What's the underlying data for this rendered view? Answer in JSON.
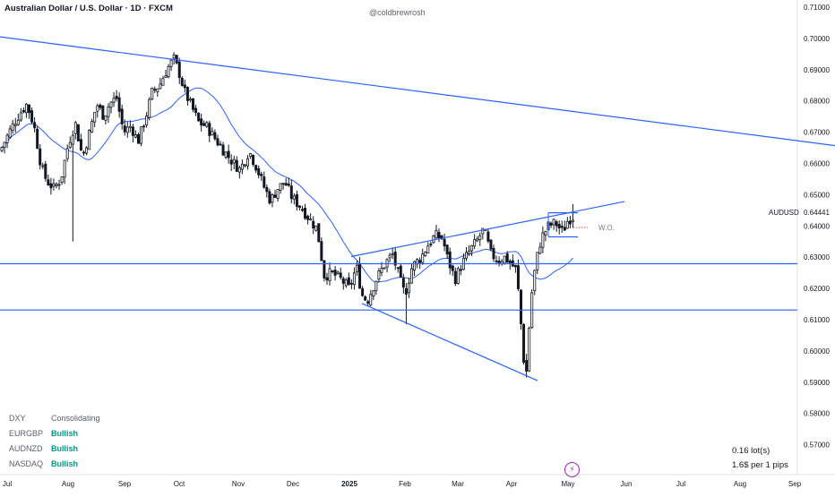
{
  "header": {
    "title": "Australian Dollar / U.S. Dollar · 1D · FXCM",
    "author": "@coldbrewrosh"
  },
  "chart_data": {
    "type": "candlestick",
    "symbol": "AUDUSD",
    "last_price": "0.64441",
    "y_ticks": [
      "0.71000",
      "0.70000",
      "0.69000",
      "0.68000",
      "0.67000",
      "0.66000",
      "0.65000",
      "0.64000",
      "0.63000",
      "0.62000",
      "0.61000",
      "0.60000",
      "0.59000",
      "0.58000",
      "0.57000"
    ],
    "ylim": [
      0.5665,
      0.7145
    ],
    "x_ticks": [
      "Jul",
      "Aug",
      "Sep",
      "Oct",
      "Nov",
      "Dec",
      "2025",
      "Feb",
      "Mar",
      "Apr",
      "May",
      "Jun",
      "Jul",
      "Aug",
      "Sep"
    ],
    "annotation": "W.O.",
    "color_up": "#131722",
    "color_down": "#131722",
    "ma_color": "#2962ff",
    "trendline_color": "#2962ff",
    "anchors": [
      [
        0,
        0.664
      ],
      [
        12,
        0.671
      ],
      [
        22,
        0.676
      ],
      [
        30,
        0.679
      ],
      [
        38,
        0.672
      ],
      [
        46,
        0.659
      ],
      [
        52,
        0.6545
      ],
      [
        60,
        0.652
      ],
      [
        68,
        0.655
      ],
      [
        76,
        0.666
      ],
      [
        84,
        0.673
      ],
      [
        92,
        0.662
      ],
      [
        100,
        0.67
      ],
      [
        108,
        0.679
      ],
      [
        116,
        0.675
      ],
      [
        122,
        0.679
      ],
      [
        130,
        0.681
      ],
      [
        138,
        0.67
      ],
      [
        146,
        0.672
      ],
      [
        154,
        0.667
      ],
      [
        162,
        0.674
      ],
      [
        170,
        0.683
      ],
      [
        178,
        0.685
      ],
      [
        186,
        0.69
      ],
      [
        194,
        0.6935
      ],
      [
        200,
        0.689
      ],
      [
        206,
        0.683
      ],
      [
        214,
        0.678
      ],
      [
        222,
        0.673
      ],
      [
        230,
        0.672
      ],
      [
        240,
        0.668
      ],
      [
        250,
        0.664
      ],
      [
        258,
        0.661
      ],
      [
        268,
        0.658
      ],
      [
        278,
        0.664
      ],
      [
        286,
        0.659
      ],
      [
        294,
        0.653
      ],
      [
        302,
        0.648
      ],
      [
        310,
        0.652
      ],
      [
        318,
        0.654
      ],
      [
        326,
        0.649
      ],
      [
        336,
        0.646
      ],
      [
        346,
        0.642
      ],
      [
        354,
        0.639
      ],
      [
        362,
        0.624
      ],
      [
        370,
        0.625
      ],
      [
        380,
        0.623
      ],
      [
        390,
        0.62
      ],
      [
        398,
        0.627
      ],
      [
        404,
        0.618
      ],
      [
        410,
        0.616
      ],
      [
        420,
        0.623
      ],
      [
        430,
        0.628
      ],
      [
        438,
        0.631
      ],
      [
        446,
        0.623
      ],
      [
        452,
        0.618
      ],
      [
        460,
        0.627
      ],
      [
        470,
        0.63
      ],
      [
        478,
        0.634
      ],
      [
        486,
        0.637
      ],
      [
        494,
        0.636
      ],
      [
        500,
        0.629
      ],
      [
        508,
        0.623
      ],
      [
        516,
        0.628
      ],
      [
        524,
        0.632
      ],
      [
        532,
        0.635
      ],
      [
        540,
        0.639
      ],
      [
        548,
        0.631
      ],
      [
        556,
        0.629
      ],
      [
        564,
        0.63
      ],
      [
        570,
        0.628
      ],
      [
        576,
        0.626
      ],
      [
        580,
        0.615
      ],
      [
        584,
        0.598
      ],
      [
        588,
        0.593
      ],
      [
        592,
        0.615
      ],
      [
        598,
        0.628
      ],
      [
        604,
        0.636
      ],
      [
        612,
        0.64
      ],
      [
        620,
        0.641
      ],
      [
        628,
        0.638
      ],
      [
        634,
        0.642
      ],
      [
        640,
        0.643
      ]
    ],
    "lines": [
      {
        "name": "upper-trendline",
        "x1": 0,
        "y1": 0.7005,
        "x2": 932,
        "y2": 0.6657
      },
      {
        "name": "wedge-upper",
        "x1": 392,
        "y1": 0.6302,
        "x2": 697,
        "y2": 0.6478
      },
      {
        "name": "wedge-lower",
        "x1": 404,
        "y1": 0.6152,
        "x2": 600,
        "y2": 0.5905
      },
      {
        "name": "support-high",
        "x1": 0,
        "y1": 0.6279,
        "x2": 890,
        "y2": 0.6279
      },
      {
        "name": "support-low",
        "x1": 0,
        "y1": 0.6131,
        "x2": 890,
        "y2": 0.6131
      },
      {
        "name": "range-top",
        "x1": 612,
        "y1": 0.6442,
        "x2": 645,
        "y2": 0.6442
      },
      {
        "name": "range-bottom",
        "x1": 612,
        "y1": 0.6365,
        "x2": 645,
        "y2": 0.6365
      }
    ]
  },
  "watchlist": [
    {
      "symbol": "DXY",
      "status": "Consolidating",
      "bullish": false
    },
    {
      "symbol": "EURGBP",
      "status": "Bullish",
      "bullish": true
    },
    {
      "symbol": "AUDNZD",
      "status": "Bullish",
      "bullish": true
    },
    {
      "symbol": "NASDAQ",
      "status": "Bullish",
      "bullish": true
    }
  ],
  "position": {
    "lot": "0.16 lot(s)",
    "pip_value": "1.6$ per 1 pips"
  },
  "badge_icon": "lightning-icon"
}
